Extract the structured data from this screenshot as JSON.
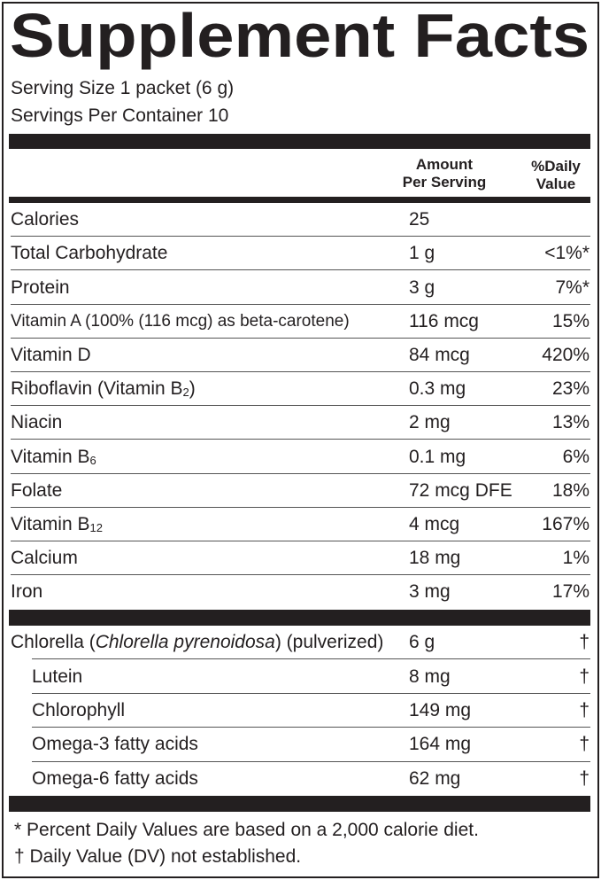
{
  "header": {
    "title": "Supplement Facts",
    "serving_size": "Serving Size 1 packet (6 g)",
    "servings_per_container": "Servings Per Container 10"
  },
  "table": {
    "columns": {
      "amount": [
        "Amount",
        "Per Serving"
      ],
      "daily_value": [
        "%Daily",
        "Value"
      ]
    },
    "nutrients": [
      {
        "name": "Calories",
        "amount": "25"
      },
      {
        "name": "Total Carbohydrate",
        "amount": "1 g",
        "daily_value": "<1%*"
      },
      {
        "name": "Protein",
        "amount": "3 g",
        "daily_value": "7%*"
      },
      {
        "name": "Vitamin A (100% (116 mcg) as beta-carotene)",
        "amount": "116 mcg",
        "daily_value": "15%"
      },
      {
        "name": "Vitamin D",
        "amount": "84 mcg",
        "daily_value": "420%"
      },
      {
        "name": [
          {
            "text": "Riboflavin (Vitamin B"
          },
          {
            "text": "2",
            "sub": true
          },
          {
            "text": ")"
          }
        ],
        "amount": "0.3 mg",
        "daily_value": "23%"
      },
      {
        "name": "Niacin",
        "amount": "2 mg",
        "daily_value": "13%"
      },
      {
        "name": [
          {
            "text": "Vitamin B"
          },
          {
            "text": "6",
            "sub": true
          }
        ],
        "amount": "0.1 mg",
        "daily_value": "6%"
      },
      {
        "name": "Folate",
        "amount": "72 mcg DFE",
        "daily_value": "18%"
      },
      {
        "name": [
          {
            "text": "Vitamin B"
          },
          {
            "text": "12",
            "sub": true
          }
        ],
        "amount": "4 mcg",
        "daily_value": "167%"
      },
      {
        "name": "Calcium",
        "amount": "18 mg",
        "daily_value": "1%"
      },
      {
        "name": "Iron",
        "amount": "3 mg",
        "daily_value": "17%"
      }
    ],
    "ingredients": [
      {
        "name": [
          {
            "text": "Chlorella ("
          },
          {
            "text": "Chlorella pyrenoidosa",
            "italic": true
          },
          {
            "text": ") (pulverized)"
          }
        ],
        "amount": "6 g",
        "daily_value": "†"
      },
      {
        "name": "Lutein",
        "amount": "8 mg",
        "daily_value": "†",
        "indent": true
      },
      {
        "name": "Chlorophyll",
        "amount": "149 mg",
        "daily_value": "†",
        "indent": true
      },
      {
        "name": "Omega-3 fatty acids",
        "amount": "164 mg",
        "daily_value": "†",
        "indent": true
      },
      {
        "name": "Omega-6 fatty acids",
        "amount": "62 mg",
        "daily_value": "†",
        "indent": true
      }
    ]
  },
  "footnotes": [
    "* Percent Daily Values are based on a 2,000 calorie diet.",
    "† Daily Value (DV) not established."
  ]
}
